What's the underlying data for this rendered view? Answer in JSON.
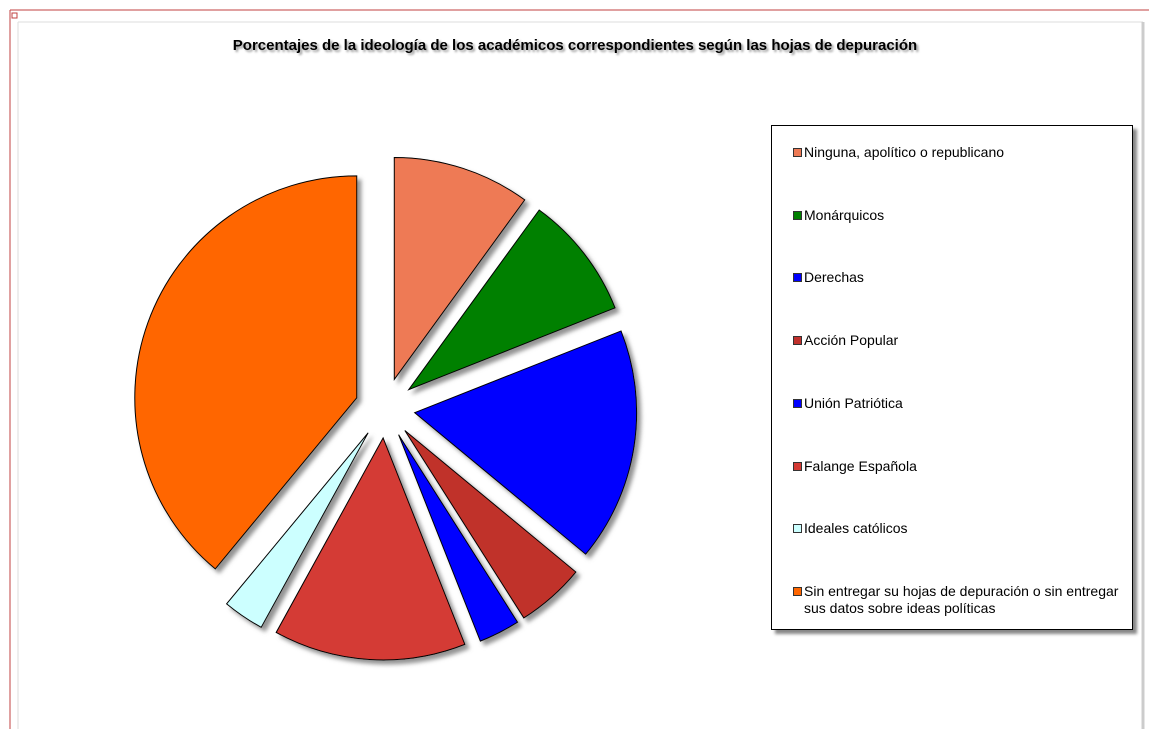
{
  "chart_data": {
    "type": "pie",
    "title": "Porcentajes de la ideología de los académicos correspondientes según las hojas de depuración",
    "categories": [
      "Ninguna, apolítico o republicano",
      "Monárquicos",
      "Derechas",
      "Acción Popular",
      "Unión Patriótica",
      "Falange Española",
      "Ideales católicos",
      "Sin entregar su hojas de depuración o sin entregar sus datos sobre ideas políticas"
    ],
    "values": [
      10,
      9,
      17,
      5,
      3,
      14,
      3,
      39
    ],
    "colors": [
      "#ee7a55",
      "#008000",
      "#0000ff",
      "#c0302c",
      "#0000ff",
      "#d43a34",
      "#ccffff",
      "#ff6600"
    ],
    "legend": "right"
  }
}
